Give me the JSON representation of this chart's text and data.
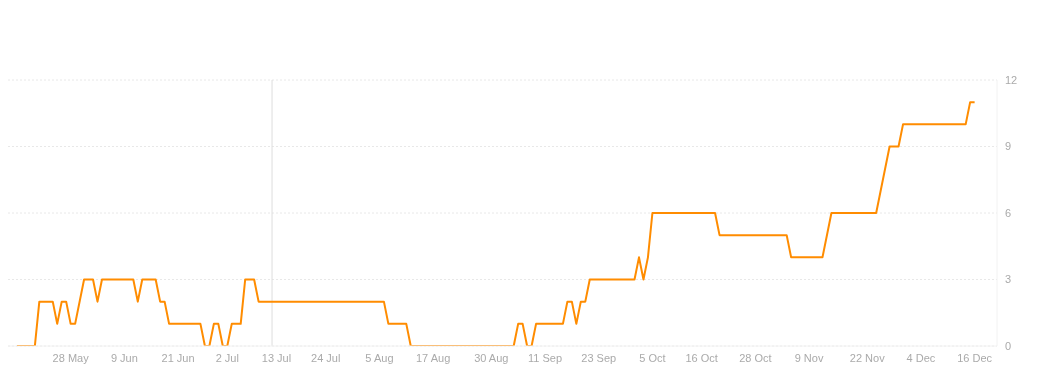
{
  "chart_data": {
    "type": "line",
    "x": [
      "--05-16",
      "--05-20",
      "--05-21",
      "--05-24",
      "--05-25",
      "--05-26",
      "--05-27",
      "--05-28",
      "--05-29",
      "--05-31",
      "--06-02",
      "--06-03",
      "--06-04",
      "--06-11",
      "--06-12",
      "--06-13",
      "--06-16",
      "--06-17",
      "--06-18",
      "--06-19",
      "--06-26",
      "--06-27",
      "--06-28",
      "--06-29",
      "--06-30",
      "--07-01",
      "--07-02",
      "--07-03",
      "--07-05",
      "--07-06",
      "--07-08",
      "--07-09",
      "--08-06",
      "--08-07",
      "--08-11",
      "--08-12",
      "--09-04",
      "--09-05",
      "--09-06",
      "--09-07",
      "--09-08",
      "--09-09",
      "--09-15",
      "--09-16",
      "--09-17",
      "--09-18",
      "--09-19",
      "--09-20",
      "--09-21",
      "--10-01",
      "--10-02",
      "--10-03",
      "--10-04",
      "--10-05",
      "--10-19",
      "--10-20",
      "--11-04",
      "--11-05",
      "--11-12",
      "--11-14",
      "--11-24",
      "--11-27",
      "--11-29",
      "--11-30",
      "--12-14",
      "--12-15",
      "--12-16"
    ],
    "series": [
      {
        "color": "#ff8c00",
        "values": [
          0,
          0,
          2,
          2,
          1,
          2,
          2,
          1,
          1,
          3,
          3,
          2,
          3,
          3,
          2,
          3,
          3,
          2,
          2,
          1,
          1,
          0,
          0,
          1,
          1,
          0,
          0,
          1,
          1,
          3,
          3,
          2,
          2,
          1,
          1,
          0,
          0,
          1,
          1,
          0,
          0,
          1,
          1,
          2,
          2,
          1,
          2,
          2,
          3,
          3,
          4,
          3,
          4,
          6,
          6,
          5,
          5,
          4,
          4,
          6,
          6,
          9,
          9,
          10,
          10,
          11,
          11
        ]
      }
    ],
    "xlim": [
      "--05-14",
      "--12-21"
    ],
    "xticks": [
      {
        "value": "--05-28",
        "label": "28 May"
      },
      {
        "value": "--06-09",
        "label": "9 Jun"
      },
      {
        "value": "--06-21",
        "label": "21 Jun"
      },
      {
        "value": "--07-02",
        "label": "2 Jul"
      },
      {
        "value": "--07-13",
        "label": "13 Jul"
      },
      {
        "value": "--07-24",
        "label": "24 Jul"
      },
      {
        "value": "--08-05",
        "label": "5 Aug"
      },
      {
        "value": "--08-17",
        "label": "17 Aug"
      },
      {
        "value": "--08-30",
        "label": "30 Aug"
      },
      {
        "value": "--09-11",
        "label": "11 Sep"
      },
      {
        "value": "--09-23",
        "label": "23 Sep"
      },
      {
        "value": "--10-05",
        "label": "5 Oct"
      },
      {
        "value": "--10-16",
        "label": "16 Oct"
      },
      {
        "value": "--10-28",
        "label": "28 Oct"
      },
      {
        "value": "--11-09",
        "label": "9 Nov"
      },
      {
        "value": "--11-22",
        "label": "22 Nov"
      },
      {
        "value": "--12-04",
        "label": "4 Dec"
      },
      {
        "value": "--12-16",
        "label": "16 Dec"
      }
    ],
    "ylim": [
      0,
      12
    ],
    "yticks": [
      0,
      3,
      6,
      9,
      12
    ],
    "ref_lines": [
      {
        "axis": "x",
        "value": "--07-12",
        "color": "#dddddd"
      }
    ],
    "grid": "y",
    "legend": false,
    "marker": "none",
    "line_style": "solid"
  }
}
